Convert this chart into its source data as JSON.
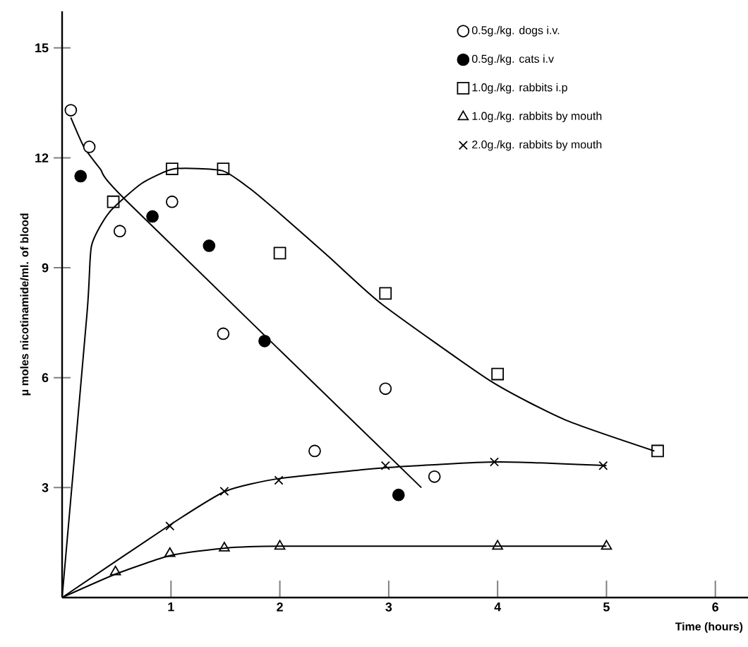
{
  "chart_data": {
    "type": "scatter",
    "xlabel": "Time (hours)",
    "ylabel": "μ moles nicotinamide/ml. of blood",
    "xlim": [
      0,
      6.3
    ],
    "ylim": [
      0,
      16
    ],
    "xticks": [
      1,
      2,
      3,
      4,
      5,
      6
    ],
    "yticks": [
      3,
      6,
      9,
      12,
      15
    ],
    "grid": false,
    "legend": "top right",
    "series": [
      {
        "name": "0.5g./kg. dogs i.v.",
        "color": "#ffffff",
        "marker": "circle",
        "x": [
          0.08,
          0.25,
          0.53,
          1.01,
          1.48,
          2.32,
          2.97,
          3.42
        ],
        "values": [
          13.3,
          12.3,
          10.0,
          10.8,
          7.2,
          4.0,
          5.7,
          3.3
        ]
      },
      {
        "name": "0.5g./kg. cats i.v",
        "color": "#000000",
        "marker": "circle",
        "x": [
          0.17,
          0.83,
          1.35,
          1.86,
          3.09
        ],
        "values": [
          11.5,
          10.4,
          9.6,
          7.0,
          2.8
        ]
      },
      {
        "name": "1.0g./kg. rabbits i.p",
        "color": "#000000",
        "marker": "square",
        "x": [
          0.47,
          1.01,
          1.48,
          2.0,
          2.97,
          4.0,
          5.47
        ],
        "values": [
          10.8,
          11.7,
          11.7,
          9.4,
          8.3,
          6.1,
          4.0
        ]
      },
      {
        "name": "1.0g./kg. rabbits by mouth",
        "color": "#000000",
        "marker": "triangle",
        "x": [
          0.49,
          0.99,
          1.49,
          2.0,
          4.0,
          5.0
        ],
        "values": [
          0.7,
          1.2,
          1.35,
          1.4,
          1.4,
          1.4
        ]
      },
      {
        "name": "2.0g./kg. rabbits by mouth",
        "color": "#000000",
        "marker": "cross",
        "x": [
          0.99,
          1.49,
          1.99,
          2.97,
          3.97,
          4.97
        ],
        "values": [
          1.95,
          2.9,
          3.2,
          3.6,
          3.7,
          3.6
        ]
      },
      {
        "type": "line",
        "color": "#000000",
        "marker": "none",
        "line_style": "solid",
        "x": [
          0.08,
          0.2,
          0.35,
          0.6,
          3.3
        ],
        "values": [
          13.1,
          12.3,
          11.7,
          10.8,
          3.0
        ]
      },
      {
        "type": "line",
        "color": "#000000",
        "marker": "none",
        "line_style": "solid",
        "x": [
          0,
          0.23,
          0.27,
          0.43,
          0.73,
          1.03,
          1.47,
          1.73,
          2.03,
          2.45,
          2.94,
          3.94,
          4.62,
          5.44
        ],
        "values": [
          0,
          7.8,
          9.6,
          10.5,
          11.3,
          11.7,
          11.65,
          11.15,
          10.4,
          9.3,
          8.0,
          5.9,
          4.85,
          4.0
        ]
      },
      {
        "type": "line",
        "color": "#000000",
        "marker": "none",
        "line_style": "solid",
        "x": [
          0,
          1,
          1.5,
          2,
          3,
          4,
          5
        ],
        "values": [
          0,
          2.0,
          2.9,
          3.25,
          3.55,
          3.7,
          3.6
        ]
      },
      {
        "type": "line",
        "color": "#000000",
        "marker": "none",
        "line_style": "solid",
        "x": [
          0,
          0.5,
          1,
          1.5,
          2,
          4,
          5
        ],
        "values": [
          0,
          0.65,
          1.15,
          1.35,
          1.4,
          1.4,
          1.4
        ]
      }
    ]
  }
}
